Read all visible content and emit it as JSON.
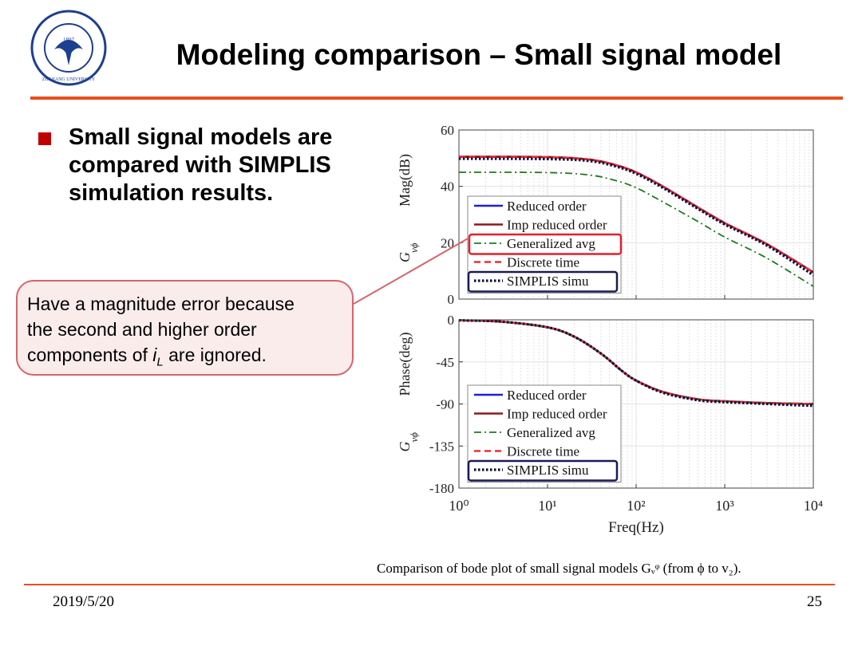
{
  "header": {
    "title": "Modeling comparison – Small signal model",
    "logo_text": "ZHEJIANG UNIVERSITY",
    "logo_year": "1897"
  },
  "bullet": {
    "lines": [
      "Small signal models are",
      "compared with SIMPLIS",
      "simulation results."
    ]
  },
  "callout": {
    "line1": "Have a magnitude error because",
    "line2": "the second and higher order",
    "line3_pre": "components of ",
    "line3_var": "i",
    "line3_sub": "L",
    "line3_post": " are ignored."
  },
  "caption": "Comparison of bode plot of small signal models Gᵥᵠ (from ϕ to v₂).",
  "footer": {
    "date": "2019/5/20",
    "page": "25"
  },
  "colors": {
    "accent_rule": "#e8501e",
    "bullet": "#c00000",
    "callout_border": "#d9646a",
    "callout_fill": "#fbecec",
    "legend_highlight": "#e0202a",
    "legend_simplis_box": "#1a1a5a"
  },
  "chart_data": [
    {
      "type": "line",
      "panel": "magnitude",
      "xlabel": "",
      "ylabel": "Mag(dB)",
      "ylabel_symbol": "G_vϕ",
      "xscale": "log",
      "xlim": [
        1,
        10000
      ],
      "ylim": [
        0,
        60
      ],
      "yticks": [
        0,
        20,
        40,
        60
      ],
      "grid": true,
      "legend": "center-left",
      "x": [
        1,
        10,
        30,
        60,
        100,
        200,
        500,
        1000,
        3000,
        10000
      ],
      "series": [
        {
          "name": "Reduced order",
          "color": "#1f1fd6",
          "style": "solid",
          "values": [
            50.5,
            50.4,
            49.5,
            47.5,
            45.0,
            40.0,
            32.5,
            27.0,
            19.5,
            9.5
          ]
        },
        {
          "name": "Imp reduced order",
          "color": "#8b1a1a",
          "style": "solid",
          "values": [
            50.5,
            50.4,
            49.5,
            47.5,
            45.0,
            40.0,
            32.5,
            27.0,
            19.5,
            9.5
          ]
        },
        {
          "name": "Generalized avg",
          "color": "#1e7a1e",
          "style": "dashdot",
          "values": [
            45.0,
            44.9,
            44.0,
            42.0,
            39.5,
            34.5,
            27.5,
            22.0,
            14.5,
            4.5
          ]
        },
        {
          "name": "Discrete time",
          "color": "#e8303c",
          "style": "dashed",
          "values": [
            50.5,
            50.4,
            49.5,
            47.5,
            45.0,
            40.0,
            32.5,
            27.0,
            19.5,
            9.5
          ]
        },
        {
          "name": "SIMPLIS simu",
          "color": "#0a0a3a",
          "style": "dotted",
          "values": [
            49.8,
            49.7,
            49.0,
            47.0,
            44.5,
            39.5,
            32.0,
            26.5,
            19.0,
            8.5
          ]
        }
      ]
    },
    {
      "type": "line",
      "panel": "phase",
      "xlabel": "Freq(Hz)",
      "ylabel": "Phase(deg)",
      "ylabel_symbol": "G_vϕ",
      "xscale": "log",
      "xlim": [
        1,
        10000
      ],
      "ylim": [
        -180,
        0
      ],
      "yticks": [
        -180,
        -135,
        -90,
        -45,
        0
      ],
      "xticks": [
        1,
        10,
        100,
        1000,
        10000
      ],
      "xticklabels": [
        "10⁰",
        "10¹",
        "10²",
        "10³",
        "10⁴"
      ],
      "grid": true,
      "legend": "bottom-left",
      "x": [
        1,
        3,
        10,
        20,
        40,
        70,
        100,
        200,
        500,
        1000,
        3000,
        10000
      ],
      "series": [
        {
          "name": "Reduced order",
          "color": "#1f1fd6",
          "style": "solid",
          "values": [
            -0.5,
            -2,
            -8,
            -18,
            -36,
            -55,
            -65,
            -77,
            -85,
            -87,
            -89,
            -90
          ]
        },
        {
          "name": "Imp reduced order",
          "color": "#8b1a1a",
          "style": "solid",
          "values": [
            -0.5,
            -2,
            -8,
            -18,
            -36,
            -55,
            -65,
            -77,
            -85,
            -87,
            -89,
            -90
          ]
        },
        {
          "name": "Generalized avg",
          "color": "#1e7a1e",
          "style": "dashdot",
          "values": [
            -0.5,
            -2,
            -8,
            -18,
            -36,
            -55,
            -65,
            -77,
            -85,
            -87,
            -89,
            -90
          ]
        },
        {
          "name": "Discrete time",
          "color": "#e8303c",
          "style": "dashed",
          "values": [
            -0.5,
            -2,
            -8,
            -18,
            -36,
            -55,
            -65,
            -77,
            -85,
            -87,
            -89,
            -90
          ]
        },
        {
          "name": "SIMPLIS simu",
          "color": "#0a0a3a",
          "style": "dotted",
          "values": [
            -0.5,
            -2,
            -8,
            -18,
            -36,
            -55,
            -65,
            -78,
            -86,
            -88,
            -90,
            -92
          ]
        }
      ]
    }
  ]
}
